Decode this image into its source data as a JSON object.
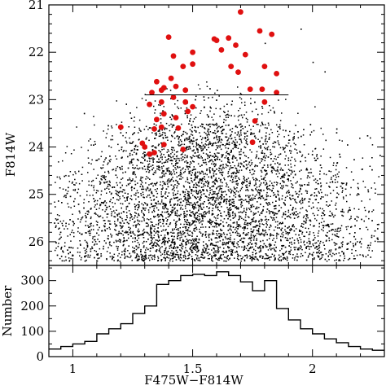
{
  "chart_data": [
    {
      "type": "scatter",
      "title": "",
      "xlabel": "F475W−F814W",
      "ylabel": "F814W",
      "xlim": [
        0.9,
        2.3
      ],
      "ylim": [
        26.5,
        21.0
      ],
      "y_inverted": true,
      "x_ticks": [
        1,
        1.5,
        2
      ],
      "x_tick_labels": [
        "1",
        "1.5",
        "2"
      ],
      "y_ticks": [
        21,
        22,
        23,
        24,
        25,
        26
      ],
      "y_tick_labels": [
        "21",
        "22",
        "23",
        "24",
        "25",
        "26"
      ],
      "grid": false,
      "legend": null,
      "colors": {
        "field_stars": "#000000",
        "highlighted": "#e01010",
        "cut_line": "#000000"
      },
      "cut_line": {
        "y": 22.9,
        "x_range": [
          1.3,
          1.9
        ]
      },
      "background_density": {
        "description_points": "approx. 6000 small black points",
        "bright_tail": [
          [
            1.8,
            21.8
          ],
          [
            1.95,
            21.5
          ],
          [
            2.05,
            22.4
          ],
          [
            2.0,
            22.2
          ]
        ],
        "color_mean": 1.55,
        "mag_peak": 25.3
      },
      "highlighted_points": [
        [
          1.7,
          21.15
        ],
        [
          1.59,
          21.72
        ],
        [
          1.6,
          21.75
        ],
        [
          1.65,
          21.7
        ],
        [
          1.68,
          21.85
        ],
        [
          1.78,
          21.55
        ],
        [
          1.83,
          21.62
        ],
        [
          1.62,
          21.95
        ],
        [
          1.72,
          22.05
        ],
        [
          1.4,
          21.68
        ],
        [
          1.42,
          22.08
        ],
        [
          1.5,
          22.0
        ],
        [
          1.5,
          22.25
        ],
        [
          1.46,
          22.3
        ],
        [
          1.66,
          22.3
        ],
        [
          1.69,
          22.42
        ],
        [
          1.8,
          22.3
        ],
        [
          1.85,
          22.45
        ],
        [
          1.41,
          22.55
        ],
        [
          1.35,
          22.62
        ],
        [
          1.37,
          22.8
        ],
        [
          1.33,
          22.85
        ],
        [
          1.38,
          22.75
        ],
        [
          1.43,
          22.72
        ],
        [
          1.47,
          22.8
        ],
        [
          1.74,
          22.78
        ],
        [
          1.79,
          22.78
        ],
        [
          1.85,
          22.85
        ],
        [
          1.42,
          22.95
        ],
        [
          1.47,
          23.05
        ],
        [
          1.37,
          23.05
        ],
        [
          1.32,
          23.1
        ],
        [
          1.8,
          23.05
        ],
        [
          1.5,
          23.15
        ],
        [
          1.48,
          23.25
        ],
        [
          1.38,
          23.3
        ],
        [
          1.43,
          23.38
        ],
        [
          1.35,
          23.42
        ],
        [
          1.76,
          23.45
        ],
        [
          1.2,
          23.58
        ],
        [
          1.37,
          23.58
        ],
        [
          1.44,
          23.6
        ],
        [
          1.34,
          23.62
        ],
        [
          1.29,
          23.92
        ],
        [
          1.3,
          24.0
        ],
        [
          1.38,
          23.95
        ],
        [
          1.46,
          24.05
        ],
        [
          1.34,
          24.12
        ],
        [
          1.32,
          24.15
        ],
        [
          1.75,
          23.9
        ]
      ]
    },
    {
      "type": "bar",
      "title": "",
      "xlabel": "F475W−F814W",
      "ylabel": "Number",
      "xlim": [
        0.9,
        2.3
      ],
      "ylim": [
        0,
        360
      ],
      "y_ticks": [
        0,
        100,
        200,
        300
      ],
      "y_tick_labels": [
        "0",
        "100",
        "200",
        "300"
      ],
      "grid": false,
      "histogram_step": true,
      "bin_edges": [
        0.9,
        0.95,
        1.0,
        1.05,
        1.1,
        1.15,
        1.2,
        1.25,
        1.3,
        1.35,
        1.4,
        1.45,
        1.5,
        1.55,
        1.6,
        1.65,
        1.7,
        1.75,
        1.8,
        1.85,
        1.9,
        1.95,
        2.0,
        2.05,
        2.1,
        2.15,
        2.2,
        2.25,
        2.3
      ],
      "values": [
        30,
        40,
        50,
        60,
        90,
        110,
        130,
        170,
        200,
        285,
        300,
        320,
        325,
        320,
        335,
        320,
        295,
        260,
        300,
        190,
        145,
        110,
        90,
        70,
        55,
        40,
        30,
        25
      ]
    }
  ]
}
